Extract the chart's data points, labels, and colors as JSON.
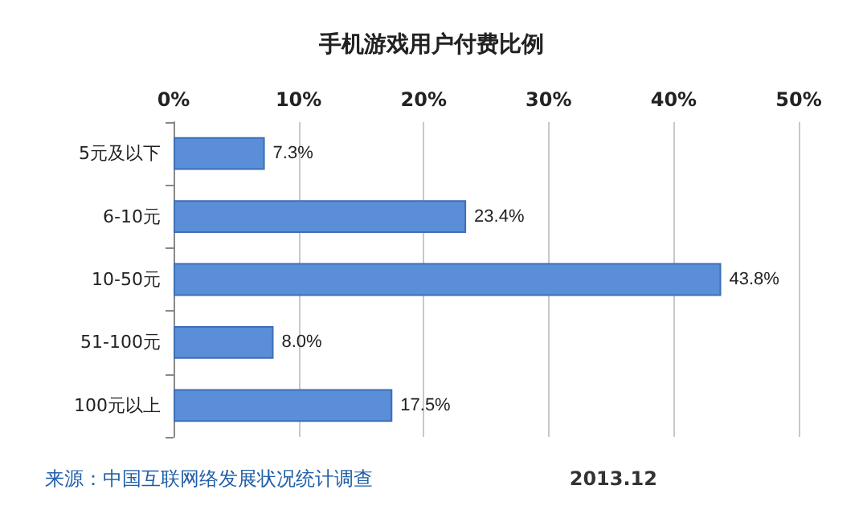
{
  "chart_data": {
    "type": "bar",
    "orientation": "horizontal",
    "title": "手机游戏用户付费比例",
    "categories": [
      "5元及以下",
      "6-10元",
      "10-50元",
      "51-100元",
      "100元以上"
    ],
    "values": [
      7.3,
      23.4,
      43.8,
      8.0,
      17.5
    ],
    "value_labels": [
      "7.3%",
      "23.4%",
      "43.8%",
      "8.0%",
      "17.5%"
    ],
    "color": "#5b8ed8",
    "xlim": [
      0,
      50
    ],
    "xticks": [
      {
        "value": 0,
        "label": "0%"
      },
      {
        "value": 10,
        "label": "10%"
      },
      {
        "value": 20,
        "label": "20%"
      },
      {
        "value": 30,
        "label": "30%"
      },
      {
        "value": 40,
        "label": "40%"
      },
      {
        "value": 50,
        "label": "50%"
      }
    ],
    "grid": "x",
    "annotations": [
      "来源：中国互联网络发展状况统计调查",
      "2013.12"
    ]
  }
}
